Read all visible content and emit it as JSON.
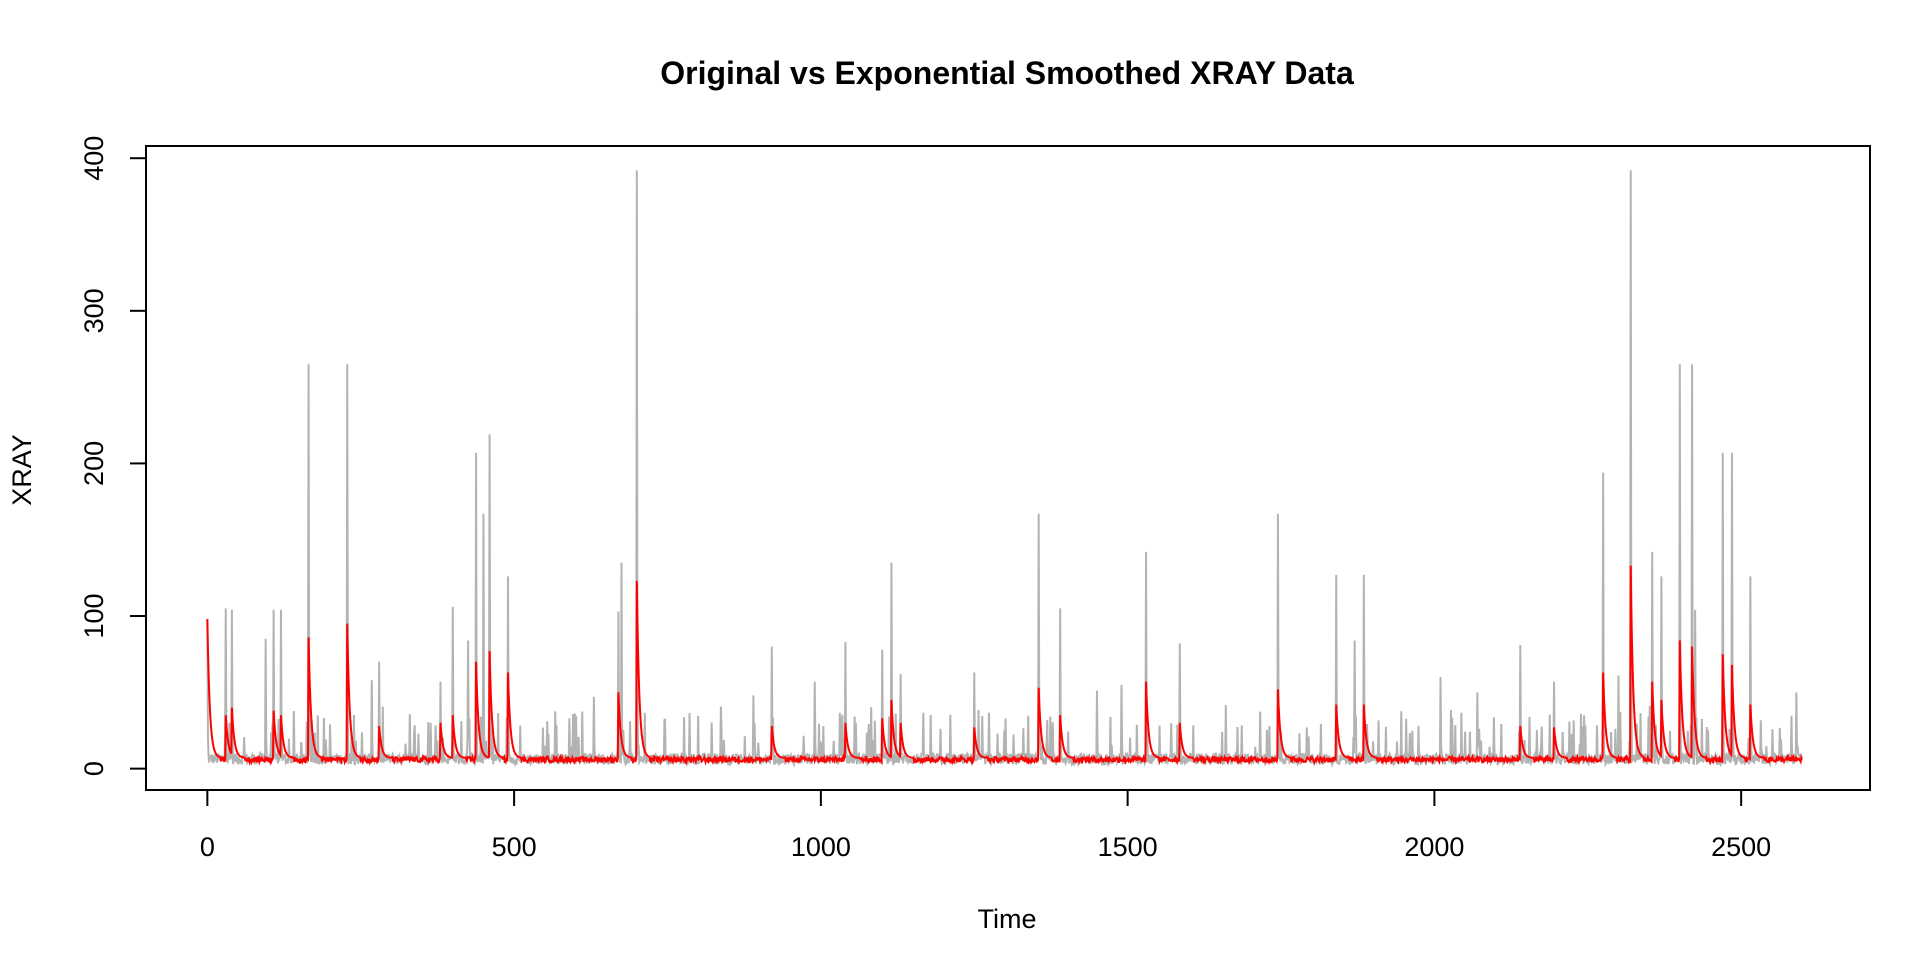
{
  "chart_data": {
    "type": "line",
    "title": "Original vs Exponential Smoothed XRAY Data",
    "xlabel": "Time",
    "ylabel": "XRAY",
    "xlim": [
      -100,
      2710
    ],
    "ylim": [
      -14,
      408
    ],
    "x_ticks": [
      0,
      500,
      1000,
      1500,
      2000,
      2500
    ],
    "y_ticks": [
      0,
      100,
      200,
      300,
      400
    ],
    "x_tick_labels": [
      "0",
      "500",
      "1000",
      "1500",
      "2000",
      "2500"
    ],
    "y_tick_labels": [
      "0",
      "100",
      "200",
      "300",
      "400"
    ],
    "grid": false,
    "legend": "none",
    "n_points": 2600,
    "series": [
      {
        "role": "original",
        "color": "#b3b3b3",
        "baseline": 8,
        "spikes": [
          [
            0,
            98
          ],
          [
            30,
            105
          ],
          [
            40,
            104
          ],
          [
            95,
            85
          ],
          [
            108,
            104
          ],
          [
            120,
            104
          ],
          [
            165,
            265
          ],
          [
            228,
            265
          ],
          [
            268,
            58
          ],
          [
            280,
            70
          ],
          [
            380,
            57
          ],
          [
            400,
            106
          ],
          [
            425,
            84
          ],
          [
            438,
            207
          ],
          [
            450,
            167
          ],
          [
            460,
            219
          ],
          [
            490,
            126
          ],
          [
            590,
            33
          ],
          [
            630,
            47
          ],
          [
            670,
            103
          ],
          [
            675,
            135
          ],
          [
            700,
            392
          ],
          [
            890,
            48
          ],
          [
            920,
            80
          ],
          [
            990,
            57
          ],
          [
            1040,
            83
          ],
          [
            1100,
            78
          ],
          [
            1115,
            135
          ],
          [
            1130,
            62
          ],
          [
            1250,
            63
          ],
          [
            1355,
            167
          ],
          [
            1390,
            105
          ],
          [
            1450,
            51
          ],
          [
            1490,
            55
          ],
          [
            1530,
            142
          ],
          [
            1585,
            82
          ],
          [
            1745,
            167
          ],
          [
            1840,
            127
          ],
          [
            1870,
            84
          ],
          [
            1885,
            127
          ],
          [
            2010,
            60
          ],
          [
            2070,
            50
          ],
          [
            2140,
            81
          ],
          [
            2195,
            57
          ],
          [
            2275,
            194
          ],
          [
            2300,
            61
          ],
          [
            2320,
            392
          ],
          [
            2355,
            142
          ],
          [
            2370,
            126
          ],
          [
            2400,
            265
          ],
          [
            2420,
            265
          ],
          [
            2425,
            104
          ],
          [
            2470,
            207
          ],
          [
            2485,
            207
          ],
          [
            2515,
            126
          ],
          [
            2590,
            50
          ]
        ]
      },
      {
        "role": "smoothed",
        "color": "#ff0000",
        "baseline": 7,
        "spikes": [
          [
            0,
            98
          ],
          [
            30,
            35
          ],
          [
            40,
            40
          ],
          [
            108,
            38
          ],
          [
            120,
            35
          ],
          [
            165,
            86
          ],
          [
            228,
            95
          ],
          [
            280,
            28
          ],
          [
            380,
            30
          ],
          [
            400,
            35
          ],
          [
            438,
            70
          ],
          [
            460,
            77
          ],
          [
            490,
            63
          ],
          [
            670,
            50
          ],
          [
            700,
            123
          ],
          [
            920,
            28
          ],
          [
            1040,
            30
          ],
          [
            1100,
            33
          ],
          [
            1115,
            45
          ],
          [
            1130,
            30
          ],
          [
            1250,
            27
          ],
          [
            1355,
            53
          ],
          [
            1390,
            35
          ],
          [
            1530,
            57
          ],
          [
            1585,
            30
          ],
          [
            1745,
            52
          ],
          [
            1840,
            42
          ],
          [
            1885,
            42
          ],
          [
            2140,
            28
          ],
          [
            2195,
            27
          ],
          [
            2275,
            63
          ],
          [
            2320,
            133
          ],
          [
            2355,
            57
          ],
          [
            2370,
            45
          ],
          [
            2400,
            84
          ],
          [
            2420,
            80
          ],
          [
            2470,
            75
          ],
          [
            2485,
            68
          ],
          [
            2515,
            42
          ],
          [
            2600,
            22
          ]
        ]
      }
    ]
  }
}
